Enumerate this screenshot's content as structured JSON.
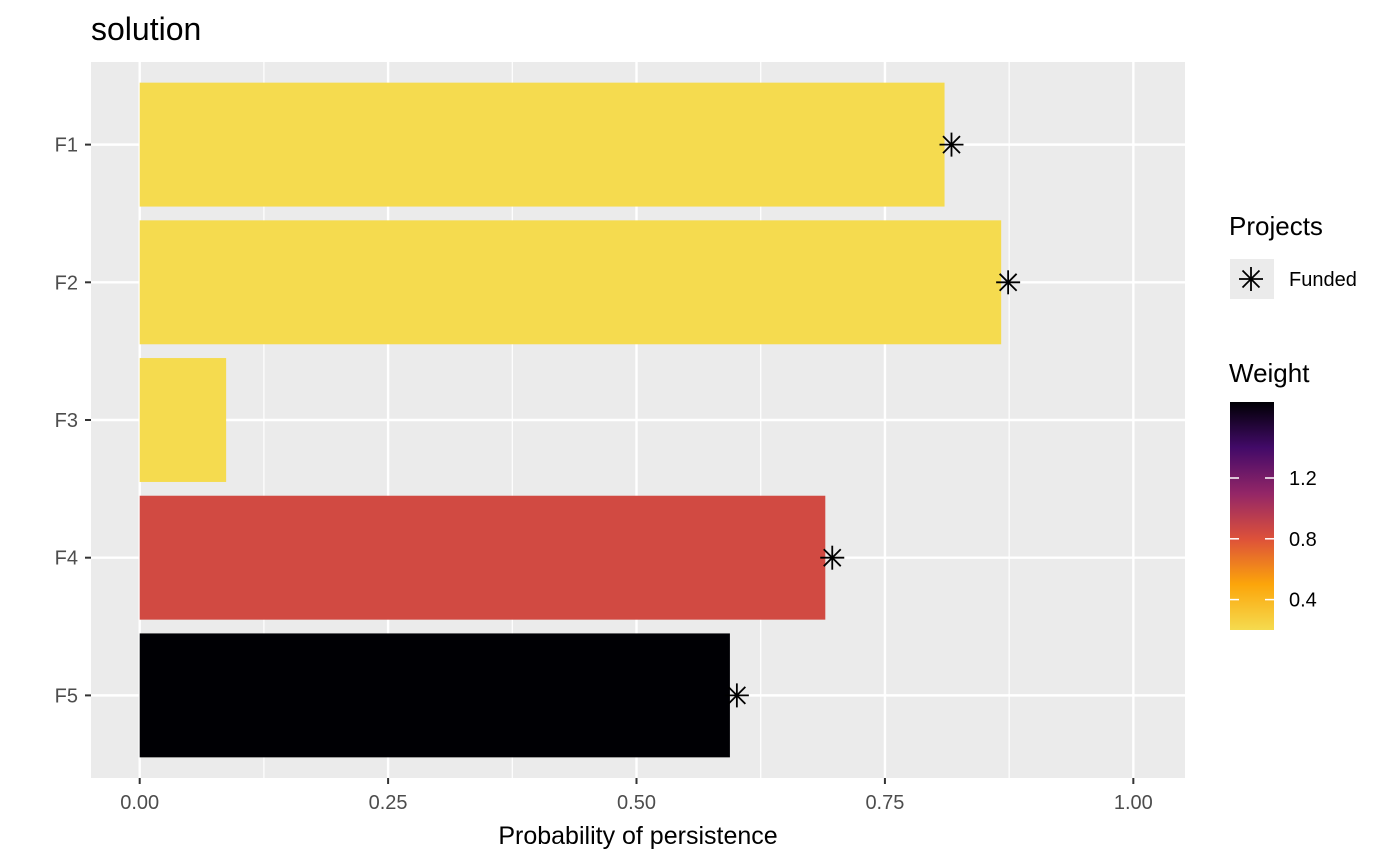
{
  "chart_data": {
    "type": "bar",
    "orientation": "horizontal",
    "title": "solution",
    "xlabel": "Probability of persistence",
    "ylabel": "",
    "xlim": [
      -0.049,
      1.052
    ],
    "x_ticks": [
      0,
      0.25,
      0.5,
      0.75,
      1
    ],
    "x_tick_labels": [
      "0.00",
      "0.25",
      "0.50",
      "0.75",
      "1.00"
    ],
    "categories": [
      "F1",
      "F2",
      "F3",
      "F4",
      "F5"
    ],
    "values": [
      0.81,
      0.867,
      0.087,
      0.69,
      0.594
    ],
    "weights": [
      0.2,
      0.2,
      0.2,
      0.85,
      1.7
    ],
    "funded": [
      true,
      true,
      false,
      true,
      true
    ],
    "marker_values": [
      0.817,
      0.874,
      null,
      0.697,
      0.601
    ],
    "grid": true,
    "legends": {
      "projects": {
        "title": "Projects",
        "items": [
          {
            "label": "Funded",
            "symbol": "asterisk"
          }
        ]
      },
      "weight": {
        "title": "Weight",
        "min": 0.2,
        "max": 1.7,
        "ticks": [
          0.4,
          0.8,
          1.2
        ],
        "tick_labels": [
          "0.4",
          "0.8",
          "1.2"
        ],
        "gradient": [
          "#f5db4f",
          "#fca50a",
          "#dd513a",
          "#932667",
          "#420a68",
          "#000004"
        ]
      }
    },
    "colors": {
      "panel_bg": "#ebebeb",
      "grid_major": "#ffffff",
      "tick_text": "#4d4d4d",
      "marker": "#000000"
    }
  }
}
